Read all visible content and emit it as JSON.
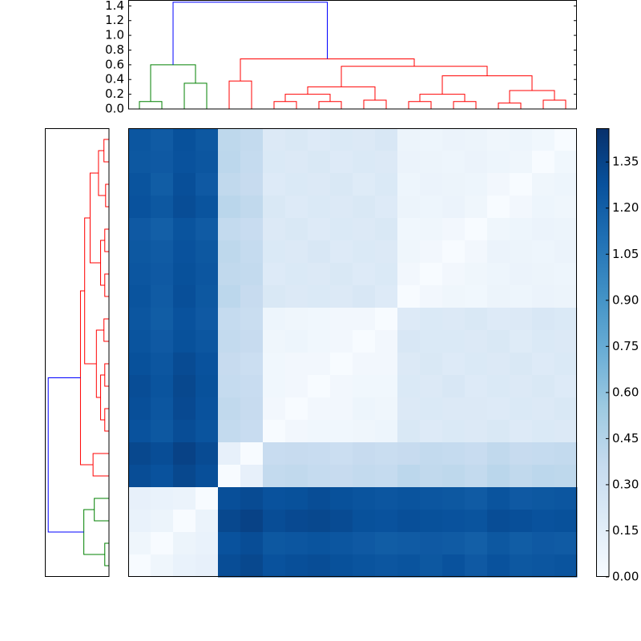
{
  "chart_data": [
    {
      "type": "dendrogram",
      "ylim": [
        0,
        1.48
      ],
      "yticks": [
        {
          "value": 0,
          "label": "0.0"
        },
        {
          "value": 0.2,
          "label": "0.2"
        },
        {
          "value": 0.4,
          "label": "0.4"
        },
        {
          "value": 0.6,
          "label": "0.6"
        },
        {
          "value": 0.8,
          "label": "0.8"
        },
        {
          "value": 1.0,
          "label": "1.0"
        },
        {
          "value": 1.2,
          "label": "1.2"
        },
        {
          "value": 1.4,
          "label": "1.4"
        }
      ],
      "left_xlim": [
        0,
        1.53
      ],
      "xlim": [
        0,
        20
      ],
      "links": [
        {
          "x": [
            0.5,
            1.5
          ],
          "y": [
            0,
            0
          ],
          "h": 0.1,
          "color": "#008000"
        },
        {
          "x": [
            2.5,
            3.5
          ],
          "y": [
            0,
            0
          ],
          "h": 0.35,
          "color": "#008000"
        },
        {
          "x": [
            1,
            3
          ],
          "y": [
            0.1,
            0.35
          ],
          "h": 0.6,
          "color": "#008000"
        },
        {
          "x": [
            4.5,
            5.5
          ],
          "y": [
            0,
            0
          ],
          "h": 0.38,
          "color": "#ff0000"
        },
        {
          "x": [
            6.5,
            7.5
          ],
          "y": [
            0,
            0
          ],
          "h": 0.1,
          "color": "#ff0000"
        },
        {
          "x": [
            8.5,
            9.5
          ],
          "y": [
            0,
            0
          ],
          "h": 0.1,
          "color": "#ff0000"
        },
        {
          "x": [
            10.5,
            11.5
          ],
          "y": [
            0,
            0
          ],
          "h": 0.12,
          "color": "#ff0000"
        },
        {
          "x": [
            7,
            9
          ],
          "y": [
            0.1,
            0.1
          ],
          "h": 0.2,
          "color": "#ff0000"
        },
        {
          "x": [
            8,
            11
          ],
          "y": [
            0.2,
            0.12
          ],
          "h": 0.3,
          "color": "#ff0000"
        },
        {
          "x": [
            12.5,
            13.5
          ],
          "y": [
            0,
            0
          ],
          "h": 0.1,
          "color": "#ff0000"
        },
        {
          "x": [
            14.5,
            15.5
          ],
          "y": [
            0,
            0
          ],
          "h": 0.1,
          "color": "#ff0000"
        },
        {
          "x": [
            16.5,
            17.5
          ],
          "y": [
            0,
            0
          ],
          "h": 0.08,
          "color": "#ff0000"
        },
        {
          "x": [
            18.5,
            19.5
          ],
          "y": [
            0,
            0
          ],
          "h": 0.12,
          "color": "#ff0000"
        },
        {
          "x": [
            13,
            15
          ],
          "y": [
            0.1,
            0.1
          ],
          "h": 0.2,
          "color": "#ff0000"
        },
        {
          "x": [
            17,
            19
          ],
          "y": [
            0.08,
            0.12
          ],
          "h": 0.25,
          "color": "#ff0000"
        },
        {
          "x": [
            14,
            18
          ],
          "y": [
            0.2,
            0.25
          ],
          "h": 0.45,
          "color": "#ff0000"
        },
        {
          "x": [
            9.5,
            16
          ],
          "y": [
            0.3,
            0.45
          ],
          "h": 0.58,
          "color": "#ff0000"
        },
        {
          "x": [
            5,
            12.75
          ],
          "y": [
            0.38,
            0.58
          ],
          "h": 0.68,
          "color": "#ff0000"
        },
        {
          "x": [
            2,
            8.875
          ],
          "y": [
            0.6,
            0.68
          ],
          "h": 1.45,
          "color": "#0000ff"
        }
      ]
    },
    {
      "type": "heatmap",
      "colormap": [
        "#f7fbff",
        "#deebf7",
        "#c6dbef",
        "#9ecae1",
        "#6baed6",
        "#4292c6",
        "#2171b5",
        "#08519c",
        "#08306b"
      ],
      "clim": [
        0,
        1.46
      ],
      "cticks": [
        {
          "value": 0,
          "label": "0.00"
        },
        {
          "value": 0.15,
          "label": "0.15"
        },
        {
          "value": 0.3,
          "label": "0.30"
        },
        {
          "value": 0.45,
          "label": "0.45"
        },
        {
          "value": 0.6,
          "label": "0.60"
        },
        {
          "value": 0.75,
          "label": "0.75"
        },
        {
          "value": 0.9,
          "label": "0.90"
        },
        {
          "value": 1.05,
          "label": "1.05"
        },
        {
          "value": 1.2,
          "label": "1.20"
        },
        {
          "value": 1.35,
          "label": "1.35"
        }
      ],
      "matrix": [
        [
          1.25,
          1.22,
          1.28,
          1.24,
          0.4,
          0.38,
          0.2,
          0.22,
          0.19,
          0.21,
          0.2,
          0.23,
          0.08,
          0.07,
          0.09,
          0.08,
          0.06,
          0.07,
          0.05,
          0.0
        ],
        [
          1.24,
          1.23,
          1.27,
          1.25,
          0.41,
          0.37,
          0.21,
          0.2,
          0.22,
          0.19,
          0.21,
          0.2,
          0.09,
          0.08,
          0.07,
          0.09,
          0.07,
          0.06,
          0.0,
          0.05
        ],
        [
          1.26,
          1.21,
          1.29,
          1.23,
          0.39,
          0.36,
          0.19,
          0.21,
          0.2,
          0.22,
          0.18,
          0.21,
          0.07,
          0.09,
          0.08,
          0.07,
          0.04,
          0.0,
          0.06,
          0.07
        ],
        [
          1.27,
          1.24,
          1.3,
          1.26,
          0.42,
          0.39,
          0.22,
          0.19,
          0.21,
          0.2,
          0.22,
          0.19,
          0.08,
          0.07,
          0.09,
          0.06,
          0.0,
          0.04,
          0.07,
          0.06
        ],
        [
          1.23,
          1.2,
          1.26,
          1.22,
          0.38,
          0.35,
          0.2,
          0.22,
          0.19,
          0.21,
          0.2,
          0.22,
          0.05,
          0.06,
          0.04,
          0.0,
          0.06,
          0.07,
          0.09,
          0.08
        ],
        [
          1.24,
          1.22,
          1.27,
          1.24,
          0.4,
          0.37,
          0.21,
          0.2,
          0.23,
          0.19,
          0.21,
          0.2,
          0.06,
          0.04,
          0.0,
          0.04,
          0.09,
          0.08,
          0.07,
          0.09
        ],
        [
          1.25,
          1.23,
          1.28,
          1.25,
          0.39,
          0.38,
          0.19,
          0.21,
          0.2,
          0.22,
          0.19,
          0.21,
          0.04,
          0.0,
          0.04,
          0.06,
          0.07,
          0.09,
          0.08,
          0.07
        ],
        [
          1.26,
          1.22,
          1.29,
          1.24,
          0.41,
          0.36,
          0.22,
          0.2,
          0.21,
          0.2,
          0.23,
          0.19,
          0.0,
          0.04,
          0.06,
          0.05,
          0.08,
          0.07,
          0.09,
          0.08
        ],
        [
          1.25,
          1.21,
          1.27,
          1.23,
          0.37,
          0.34,
          0.07,
          0.06,
          0.05,
          0.04,
          0.04,
          0.0,
          0.19,
          0.21,
          0.2,
          0.22,
          0.19,
          0.2,
          0.23,
          0.21
        ],
        [
          1.26,
          1.23,
          1.28,
          1.25,
          0.38,
          0.36,
          0.06,
          0.07,
          0.05,
          0.04,
          0.0,
          0.04,
          0.23,
          0.21,
          0.21,
          0.2,
          0.22,
          0.18,
          0.21,
          0.2
        ],
        [
          1.28,
          1.25,
          1.31,
          1.27,
          0.36,
          0.33,
          0.05,
          0.04,
          0.04,
          0.0,
          0.04,
          0.04,
          0.2,
          0.22,
          0.19,
          0.21,
          0.2,
          0.22,
          0.19,
          0.21
        ],
        [
          1.3,
          1.26,
          1.33,
          1.28,
          0.37,
          0.35,
          0.05,
          0.04,
          0.0,
          0.04,
          0.05,
          0.05,
          0.21,
          0.2,
          0.23,
          0.19,
          0.21,
          0.2,
          0.22,
          0.19
        ],
        [
          1.29,
          1.25,
          1.32,
          1.27,
          0.39,
          0.36,
          0.04,
          0.0,
          0.04,
          0.04,
          0.07,
          0.06,
          0.2,
          0.21,
          0.2,
          0.2,
          0.19,
          0.21,
          0.2,
          0.22
        ],
        [
          1.27,
          1.24,
          1.3,
          1.26,
          0.38,
          0.35,
          0.0,
          0.04,
          0.05,
          0.05,
          0.06,
          0.07,
          0.22,
          0.19,
          0.21,
          0.2,
          0.22,
          0.19,
          0.21,
          0.2
        ],
        [
          1.33,
          1.3,
          1.36,
          1.31,
          0.12,
          0.0,
          0.35,
          0.36,
          0.35,
          0.33,
          0.36,
          0.34,
          0.36,
          0.38,
          0.37,
          0.35,
          0.39,
          0.36,
          0.37,
          0.38
        ],
        [
          1.3,
          1.27,
          1.33,
          1.29,
          0.0,
          0.12,
          0.38,
          0.39,
          0.37,
          0.36,
          0.38,
          0.37,
          0.41,
          0.39,
          0.4,
          0.38,
          0.42,
          0.39,
          0.41,
          0.4
        ],
        [
          0.12,
          0.1,
          0.09,
          0.0,
          1.29,
          1.31,
          1.27,
          1.28,
          1.3,
          1.28,
          1.26,
          1.25,
          1.26,
          1.25,
          1.24,
          1.22,
          1.26,
          1.23,
          1.24,
          1.25
        ],
        [
          0.1,
          0.08,
          0.0,
          0.09,
          1.33,
          1.36,
          1.3,
          1.32,
          1.33,
          1.31,
          1.28,
          1.27,
          1.29,
          1.28,
          1.27,
          1.26,
          1.3,
          1.29,
          1.27,
          1.28
        ],
        [
          0.06,
          0.0,
          0.08,
          0.1,
          1.27,
          1.3,
          1.24,
          1.25,
          1.26,
          1.25,
          1.23,
          1.21,
          1.22,
          1.23,
          1.22,
          1.2,
          1.24,
          1.21,
          1.23,
          1.22
        ],
        [
          0.0,
          0.06,
          0.1,
          0.12,
          1.3,
          1.33,
          1.27,
          1.29,
          1.3,
          1.28,
          1.26,
          1.25,
          1.26,
          1.24,
          1.27,
          1.23,
          1.27,
          1.24,
          1.25,
          1.26
        ]
      ]
    }
  ]
}
